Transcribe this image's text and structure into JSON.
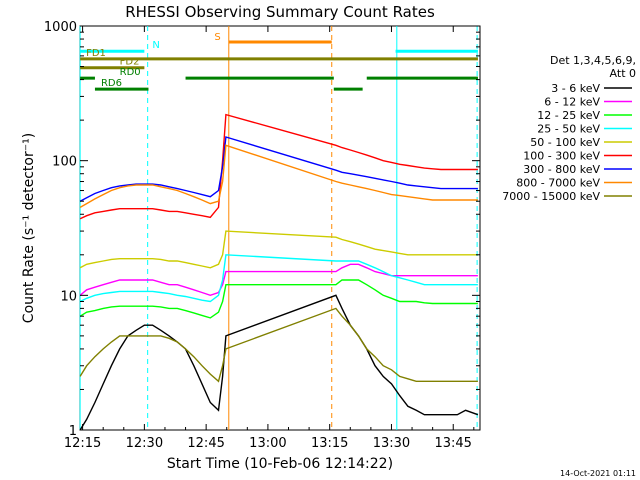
{
  "chart_data": {
    "type": "line",
    "title": "RHESSI Observing Summary Count Rates",
    "xlabel": "Start Time (10-Feb-06 12:14:22)",
    "ylabel": "Count Rate (s⁻¹ detector⁻¹)",
    "y_scale": "log",
    "ylim": [
      1,
      1000
    ],
    "xlim_min": [
      14.37,
      111.5
    ],
    "x_ticks": [
      {
        "m": 15,
        "label": "12:15"
      },
      {
        "m": 30,
        "label": "12:30"
      },
      {
        "m": 45,
        "label": "12:45"
      },
      {
        "m": 60,
        "label": "13:00"
      },
      {
        "m": 75,
        "label": "13:15"
      },
      {
        "m": 90,
        "label": "13:30"
      },
      {
        "m": 105,
        "label": "13:45"
      }
    ],
    "y_ticks": [
      {
        "v": 1,
        "label": "1"
      },
      {
        "v": 10,
        "label": "10"
      },
      {
        "v": 100,
        "label": "100"
      },
      {
        "v": 1000,
        "label": "1000"
      }
    ],
    "legend_header": [
      "Det 1,3,4,5,6,9,",
      "Att 0"
    ],
    "legend_position": "right",
    "timestamp": "14-Oct-2021 01:11",
    "series": [
      {
        "name": "3 - 6 keV",
        "color": "#000000",
        "x": [
          14.4,
          16,
          18,
          20,
          22,
          24,
          26,
          28,
          30,
          32,
          34,
          36,
          38,
          40,
          42,
          44,
          46,
          48,
          49,
          49.8,
          76.5,
          78,
          80,
          82,
          84,
          86,
          88,
          90,
          92,
          94,
          96,
          98,
          100,
          102,
          104,
          106,
          108,
          111
        ],
        "y": [
          1,
          1.2,
          1.6,
          2.2,
          3,
          4,
          5,
          5.5,
          6,
          6,
          5.5,
          5,
          4.5,
          4,
          3,
          2.2,
          1.6,
          1.4,
          2.5,
          5,
          10,
          8,
          6,
          5,
          4,
          3,
          2.5,
          2.2,
          1.8,
          1.5,
          1.4,
          1.3,
          1.3,
          1.3,
          1.3,
          1.3,
          1.4,
          1.3
        ]
      },
      {
        "name": "6 - 12 keV",
        "color": "#ff00ff",
        "x": [
          14.4,
          16,
          18,
          20,
          22,
          24,
          26,
          28,
          30,
          32,
          34,
          36,
          38,
          40,
          42,
          44,
          46,
          48,
          49,
          49.8,
          76.5,
          78,
          80,
          82,
          84,
          86,
          88,
          90,
          92,
          94,
          96,
          98,
          100,
          102,
          104,
          106,
          108,
          111
        ],
        "y": [
          10,
          11,
          11.5,
          12,
          12.5,
          13,
          13,
          13,
          13,
          13,
          12.5,
          12,
          12,
          11.5,
          11,
          10.5,
          10,
          10.5,
          12,
          15,
          15,
          16,
          17,
          17,
          16,
          15,
          14.5,
          14,
          14,
          14,
          14,
          14,
          14,
          14,
          14,
          14,
          14,
          14
        ]
      },
      {
        "name": "12 - 25 keV",
        "color": "#00ff00",
        "x": [
          14.4,
          16,
          18,
          20,
          22,
          24,
          26,
          28,
          30,
          32,
          34,
          36,
          38,
          40,
          42,
          44,
          46,
          48,
          49,
          49.8,
          76.5,
          78,
          80,
          82,
          84,
          86,
          88,
          90,
          92,
          94,
          96,
          98,
          100,
          102,
          104,
          106,
          108,
          111
        ],
        "y": [
          7,
          7.5,
          7.7,
          8,
          8.2,
          8.3,
          8.3,
          8.3,
          8.3,
          8.3,
          8.2,
          8,
          8,
          7.7,
          7.4,
          7.1,
          6.8,
          7.5,
          9,
          12,
          12,
          13,
          13,
          13,
          12,
          11,
          10,
          9.5,
          9,
          9,
          9,
          8.8,
          8.7,
          8.7,
          8.7,
          8.7,
          8.7,
          8.7
        ]
      },
      {
        "name": "25 - 50 keV",
        "color": "#00ffff",
        "x": [
          14.4,
          16,
          18,
          20,
          22,
          24,
          26,
          28,
          30,
          32,
          34,
          36,
          38,
          40,
          42,
          44,
          46,
          48,
          49,
          49.8,
          76.5,
          78,
          80,
          82,
          84,
          86,
          88,
          90,
          92,
          94,
          96,
          98,
          100,
          102,
          104,
          106,
          108,
          111
        ],
        "y": [
          9,
          9.5,
          10,
          10.3,
          10.5,
          10.7,
          10.7,
          10.7,
          10.7,
          10.7,
          10.5,
          10.3,
          10,
          9.8,
          9.5,
          9.2,
          9,
          10,
          13,
          20,
          18,
          18,
          18,
          18,
          17,
          16,
          15,
          14,
          13.5,
          13,
          12.5,
          12,
          12,
          12,
          12,
          12,
          12,
          12
        ]
      },
      {
        "name": "50 - 100 keV",
        "color": "#cccc00",
        "x": [
          14.4,
          16,
          18,
          20,
          22,
          24,
          26,
          28,
          30,
          32,
          34,
          36,
          38,
          40,
          42,
          44,
          46,
          48,
          49,
          49.8,
          76.5,
          78,
          80,
          82,
          84,
          86,
          88,
          90,
          92,
          94,
          96,
          98,
          100,
          102,
          104,
          106,
          108,
          111
        ],
        "y": [
          16,
          17,
          17.5,
          18,
          18.5,
          18.7,
          18.7,
          18.7,
          18.7,
          18.7,
          18.5,
          18,
          18,
          17.5,
          17,
          16.5,
          16,
          17,
          20,
          30,
          27,
          26,
          25,
          24,
          23,
          22,
          21.5,
          21,
          20.5,
          20,
          20,
          20,
          20,
          20,
          20,
          20,
          20,
          20
        ]
      },
      {
        "name": "100 - 300 keV",
        "color": "#ff0000",
        "x": [
          14.4,
          16,
          18,
          20,
          22,
          24,
          26,
          28,
          30,
          32,
          34,
          36,
          38,
          40,
          42,
          44,
          46,
          48,
          49,
          49.8,
          76.5,
          78,
          80,
          82,
          84,
          86,
          88,
          90,
          92,
          94,
          96,
          98,
          100,
          102,
          104,
          106,
          108,
          111
        ],
        "y": [
          37,
          39,
          41,
          42,
          43,
          44,
          44,
          44,
          44,
          44,
          43,
          42,
          42,
          41,
          40,
          39,
          38,
          45,
          100,
          220,
          130,
          125,
          120,
          115,
          110,
          105,
          100,
          97,
          94,
          92,
          90,
          88,
          87,
          86,
          86,
          86,
          86,
          86
        ]
      },
      {
        "name": "300 - 800 keV",
        "color": "#0000ff",
        "x": [
          14.4,
          16,
          18,
          20,
          22,
          24,
          26,
          28,
          30,
          32,
          34,
          36,
          38,
          40,
          42,
          44,
          46,
          48,
          49,
          49.8,
          76.5,
          78,
          80,
          82,
          84,
          86,
          88,
          90,
          92,
          94,
          96,
          98,
          100,
          102,
          104,
          106,
          108,
          111
        ],
        "y": [
          50,
          53,
          57,
          60,
          63,
          65,
          66,
          67,
          67,
          67,
          66,
          64,
          62,
          60,
          58,
          56,
          54,
          60,
          90,
          150,
          85,
          82,
          80,
          78,
          76,
          74,
          72,
          70,
          68,
          66,
          65,
          64,
          63,
          62,
          62,
          62,
          62,
          62
        ]
      },
      {
        "name": "800 - 7000 keV",
        "color": "#ff8800",
        "x": [
          14.4,
          16,
          18,
          20,
          22,
          24,
          26,
          28,
          30,
          32,
          34,
          36,
          38,
          40,
          42,
          44,
          46,
          48,
          49,
          49.8,
          76.5,
          78,
          80,
          82,
          84,
          86,
          88,
          90,
          92,
          94,
          96,
          98,
          100,
          102,
          104,
          106,
          108,
          111
        ],
        "y": [
          45,
          48,
          52,
          56,
          60,
          63,
          65,
          66,
          66,
          66,
          64,
          62,
          60,
          57,
          54,
          51,
          48,
          50,
          70,
          130,
          70,
          68,
          66,
          64,
          62,
          60,
          58,
          56,
          55,
          54,
          53,
          52,
          51,
          51,
          51,
          51,
          51,
          51
        ]
      },
      {
        "name": "7000 - 15000 keV",
        "color": "#808000",
        "x": [
          14.4,
          16,
          18,
          20,
          22,
          24,
          26,
          28,
          30,
          32,
          34,
          36,
          38,
          40,
          42,
          44,
          46,
          48,
          49,
          49.8,
          76.5,
          78,
          80,
          82,
          84,
          86,
          88,
          90,
          92,
          94,
          96,
          98,
          100,
          102,
          104,
          106,
          108,
          111
        ],
        "y": [
          2.5,
          3,
          3.5,
          4,
          4.5,
          5,
          5,
          5,
          5,
          5,
          5,
          4.8,
          4.5,
          4,
          3.5,
          3,
          2.6,
          2.3,
          3,
          4,
          8,
          7,
          6,
          5,
          4,
          3.5,
          3,
          2.8,
          2.5,
          2.4,
          2.3,
          2.3,
          2.3,
          2.3,
          2.3,
          2.3,
          2.3,
          2.3
        ]
      }
    ],
    "state_bars": [
      {
        "label": "N",
        "color": "#00ffff",
        "y": 650,
        "segments": [
          [
            14.4,
            30
          ],
          [
            91,
            111
          ]
        ]
      },
      {
        "label": "FD1",
        "color": "#808000",
        "y": 570,
        "segments": [
          [
            14.4,
            111
          ]
        ]
      },
      {
        "label": "FD2",
        "color": "#808000",
        "y": 490,
        "segments": [
          [
            14.4,
            30
          ]
        ]
      },
      {
        "label": "RD0",
        "color": "#008000",
        "y": 410,
        "segments": [
          [
            14.4,
            18
          ],
          [
            40,
            76
          ],
          [
            84,
            111
          ]
        ]
      },
      {
        "label": "RD6",
        "color": "#008000",
        "y": 340,
        "segments": [
          [
            18,
            31
          ],
          [
            76,
            83
          ]
        ]
      },
      {
        "label": "S",
        "color": "#ff8800",
        "y": 760,
        "segments": [
          [
            50.5,
            75.5
          ]
        ]
      }
    ],
    "vlines": [
      {
        "m": 14.4,
        "color": "#00ffff",
        "style": "solid"
      },
      {
        "m": 30.8,
        "color": "#00ffff",
        "style": "dashed"
      },
      {
        "m": 50.5,
        "color": "#ff8800",
        "style": "solid"
      },
      {
        "m": 75.5,
        "color": "#ff8800",
        "style": "dashed"
      },
      {
        "m": 91.3,
        "color": "#00ffff",
        "style": "solid"
      },
      {
        "m": 110.8,
        "color": "#00ffff",
        "style": "dashed"
      }
    ]
  }
}
